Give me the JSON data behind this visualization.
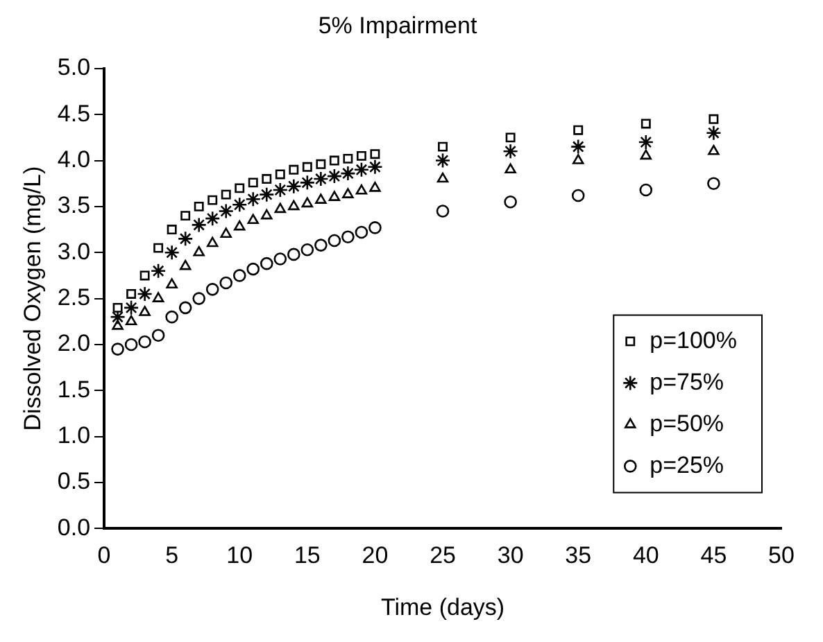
{
  "chart_data": {
    "type": "scatter",
    "title": "5% Impairment",
    "xlabel": "Time (days)",
    "ylabel": "Dissolved Oxygen (mg/L)",
    "x": [
      1,
      2,
      3,
      4,
      5,
      6,
      7,
      8,
      9,
      10,
      11,
      12,
      13,
      14,
      15,
      16,
      17,
      18,
      19,
      20,
      25,
      30,
      35,
      40,
      45
    ],
    "series": [
      {
        "name": "p=100%",
        "color": "#000000",
        "marker": "square",
        "values": [
          2.4,
          2.55,
          2.75,
          3.05,
          3.25,
          3.4,
          3.5,
          3.57,
          3.63,
          3.7,
          3.76,
          3.8,
          3.85,
          3.9,
          3.93,
          3.96,
          4.0,
          4.02,
          4.05,
          4.07,
          4.15,
          4.25,
          4.33,
          4.4,
          4.45
        ]
      },
      {
        "name": "p=75%",
        "color": "#000000",
        "marker": "cross",
        "values": [
          2.3,
          2.4,
          2.55,
          2.8,
          3.0,
          3.15,
          3.3,
          3.37,
          3.45,
          3.52,
          3.58,
          3.63,
          3.68,
          3.72,
          3.76,
          3.8,
          3.83,
          3.86,
          3.9,
          3.93,
          4.0,
          4.1,
          4.15,
          4.2,
          4.3
        ]
      },
      {
        "name": "p=50%",
        "color": "#000000",
        "marker": "triangle",
        "values": [
          2.2,
          2.25,
          2.35,
          2.5,
          2.65,
          2.85,
          3.0,
          3.1,
          3.2,
          3.28,
          3.35,
          3.4,
          3.47,
          3.5,
          3.53,
          3.57,
          3.6,
          3.63,
          3.67,
          3.7,
          3.8,
          3.9,
          4.0,
          4.05,
          4.1
        ]
      },
      {
        "name": "p=25%",
        "color": "#000000",
        "marker": "circle",
        "values": [
          1.95,
          2.0,
          2.03,
          2.1,
          2.3,
          2.4,
          2.5,
          2.6,
          2.67,
          2.75,
          2.82,
          2.88,
          2.93,
          2.98,
          3.03,
          3.08,
          3.13,
          3.17,
          3.22,
          3.27,
          3.45,
          3.55,
          3.62,
          3.68,
          3.75
        ]
      }
    ],
    "xlim": [
      0,
      50
    ],
    "xticks": [
      0,
      5,
      10,
      15,
      20,
      25,
      30,
      35,
      40,
      45,
      50
    ],
    "ylim": [
      0,
      5
    ],
    "yticks": [
      {
        "value": 0,
        "label": "0.0"
      },
      {
        "value": 0.5,
        "label": "0.5"
      },
      {
        "value": 1,
        "label": "1.0"
      },
      {
        "value": 1.5,
        "label": "1.5"
      },
      {
        "value": 2,
        "label": "2.0"
      },
      {
        "value": 2.5,
        "label": "2.5"
      },
      {
        "value": 3,
        "label": "3.0"
      },
      {
        "value": 3.5,
        "label": "3.5"
      },
      {
        "value": 4,
        "label": "4.0"
      },
      {
        "value": 4.5,
        "label": "4.5"
      },
      {
        "value": 5,
        "label": "5.0"
      }
    ],
    "grid": false,
    "legend": "bottom right"
  }
}
